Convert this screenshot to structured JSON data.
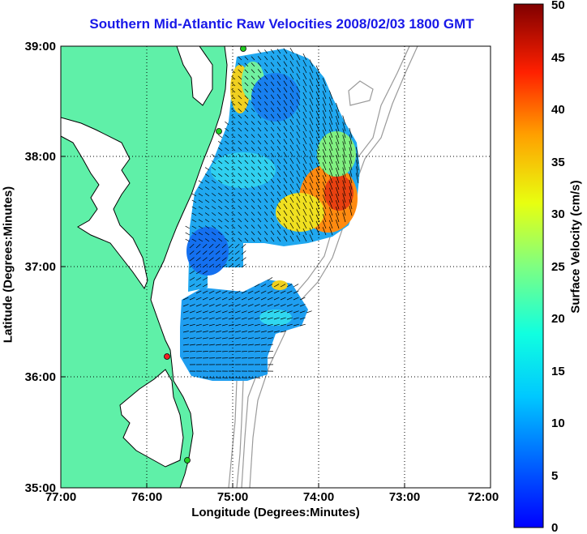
{
  "title": "Southern Mid-Atlantic Raw Velocities 2008/02/03 1800 GMT",
  "map": {
    "xlabel": "Longitude (Degrees:Minutes)",
    "ylabel": "Latitude (Degrees:Minutes)",
    "xticks": [
      "77:00",
      "76:00",
      "75:00",
      "74:00",
      "73:00",
      "72:00"
    ],
    "yticks": [
      "39:00",
      "38:00",
      "37:00",
      "36:00",
      "35:00"
    ],
    "lon_range": [
      -77,
      -72
    ],
    "lat_range": [
      35,
      39
    ],
    "grid": "dotted"
  },
  "colorbar": {
    "label": "Surface Velocity (cm/s)",
    "ticks": [
      "50",
      "45",
      "40",
      "35",
      "30",
      "25",
      "20",
      "15",
      "10",
      "5",
      "0"
    ],
    "range": [
      0,
      50
    ],
    "colormap": "jet"
  },
  "colors": {
    "land": "#5ff0a8",
    "coast": "#000000",
    "bathymetry": "#9a9a9a",
    "title": "#1818e8",
    "station_green": "#22cc22",
    "station_red": "#ee2222"
  }
}
